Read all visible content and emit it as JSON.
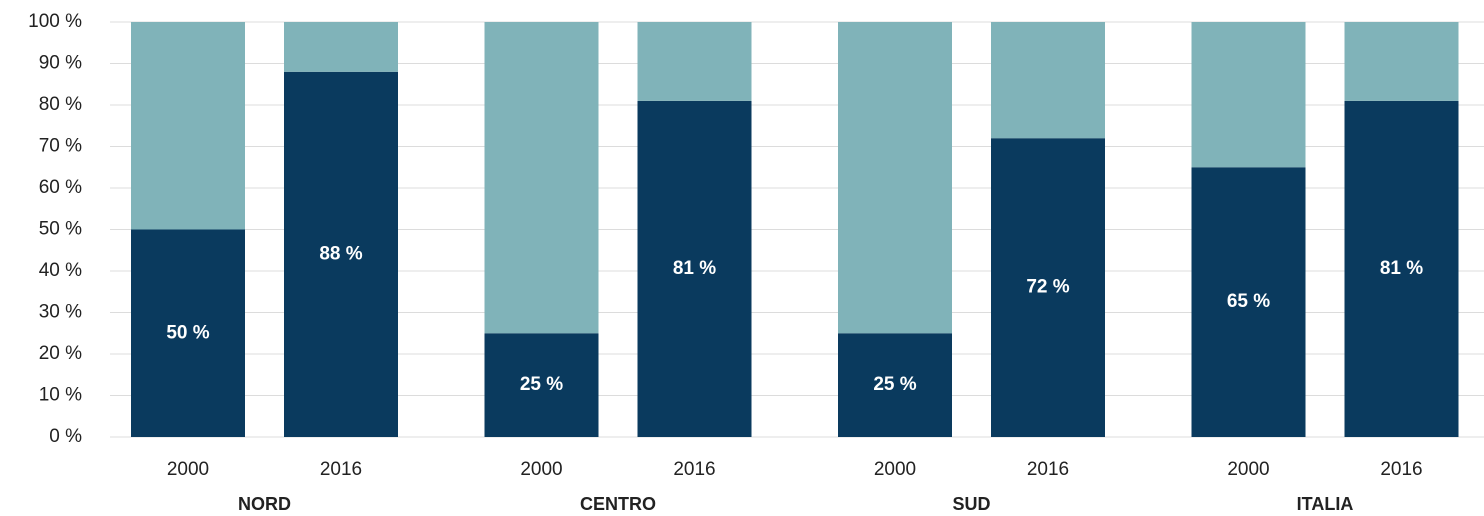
{
  "chart_data": {
    "type": "stacked-bar",
    "categories": [
      "2000",
      "2016",
      "2000",
      "2016",
      "2000",
      "2016",
      "2000",
      "2016"
    ],
    "groups": [
      "NORD",
      "CENTRO",
      "SUD",
      "ITALIA"
    ],
    "series": [
      {
        "color": "#0a3a5e",
        "values": [
          50,
          88,
          25,
          81,
          25,
          72,
          65,
          81
        ],
        "value_labels": [
          "50 %",
          "88 %",
          "25 %",
          "81 %",
          "25 %",
          "72 %",
          "65 %",
          "81 %"
        ]
      },
      {
        "color": "#80b3b9",
        "values": [
          50,
          12,
          75,
          19,
          75,
          28,
          35,
          19
        ]
      }
    ],
    "ylim": [
      0,
      100
    ],
    "yticks": [
      {
        "value": 0,
        "label": "0 %"
      },
      {
        "value": 10,
        "label": "10 %"
      },
      {
        "value": 20,
        "label": "20 %"
      },
      {
        "value": 30,
        "label": "30 %"
      },
      {
        "value": 40,
        "label": "40 %"
      },
      {
        "value": 50,
        "label": "50 %"
      },
      {
        "value": 60,
        "label": "60 %"
      },
      {
        "value": 70,
        "label": "70 %"
      },
      {
        "value": 80,
        "label": "80 %"
      },
      {
        "value": 90,
        "label": "90 %"
      },
      {
        "value": 100,
        "label": "100 %"
      }
    ],
    "grid": true
  }
}
